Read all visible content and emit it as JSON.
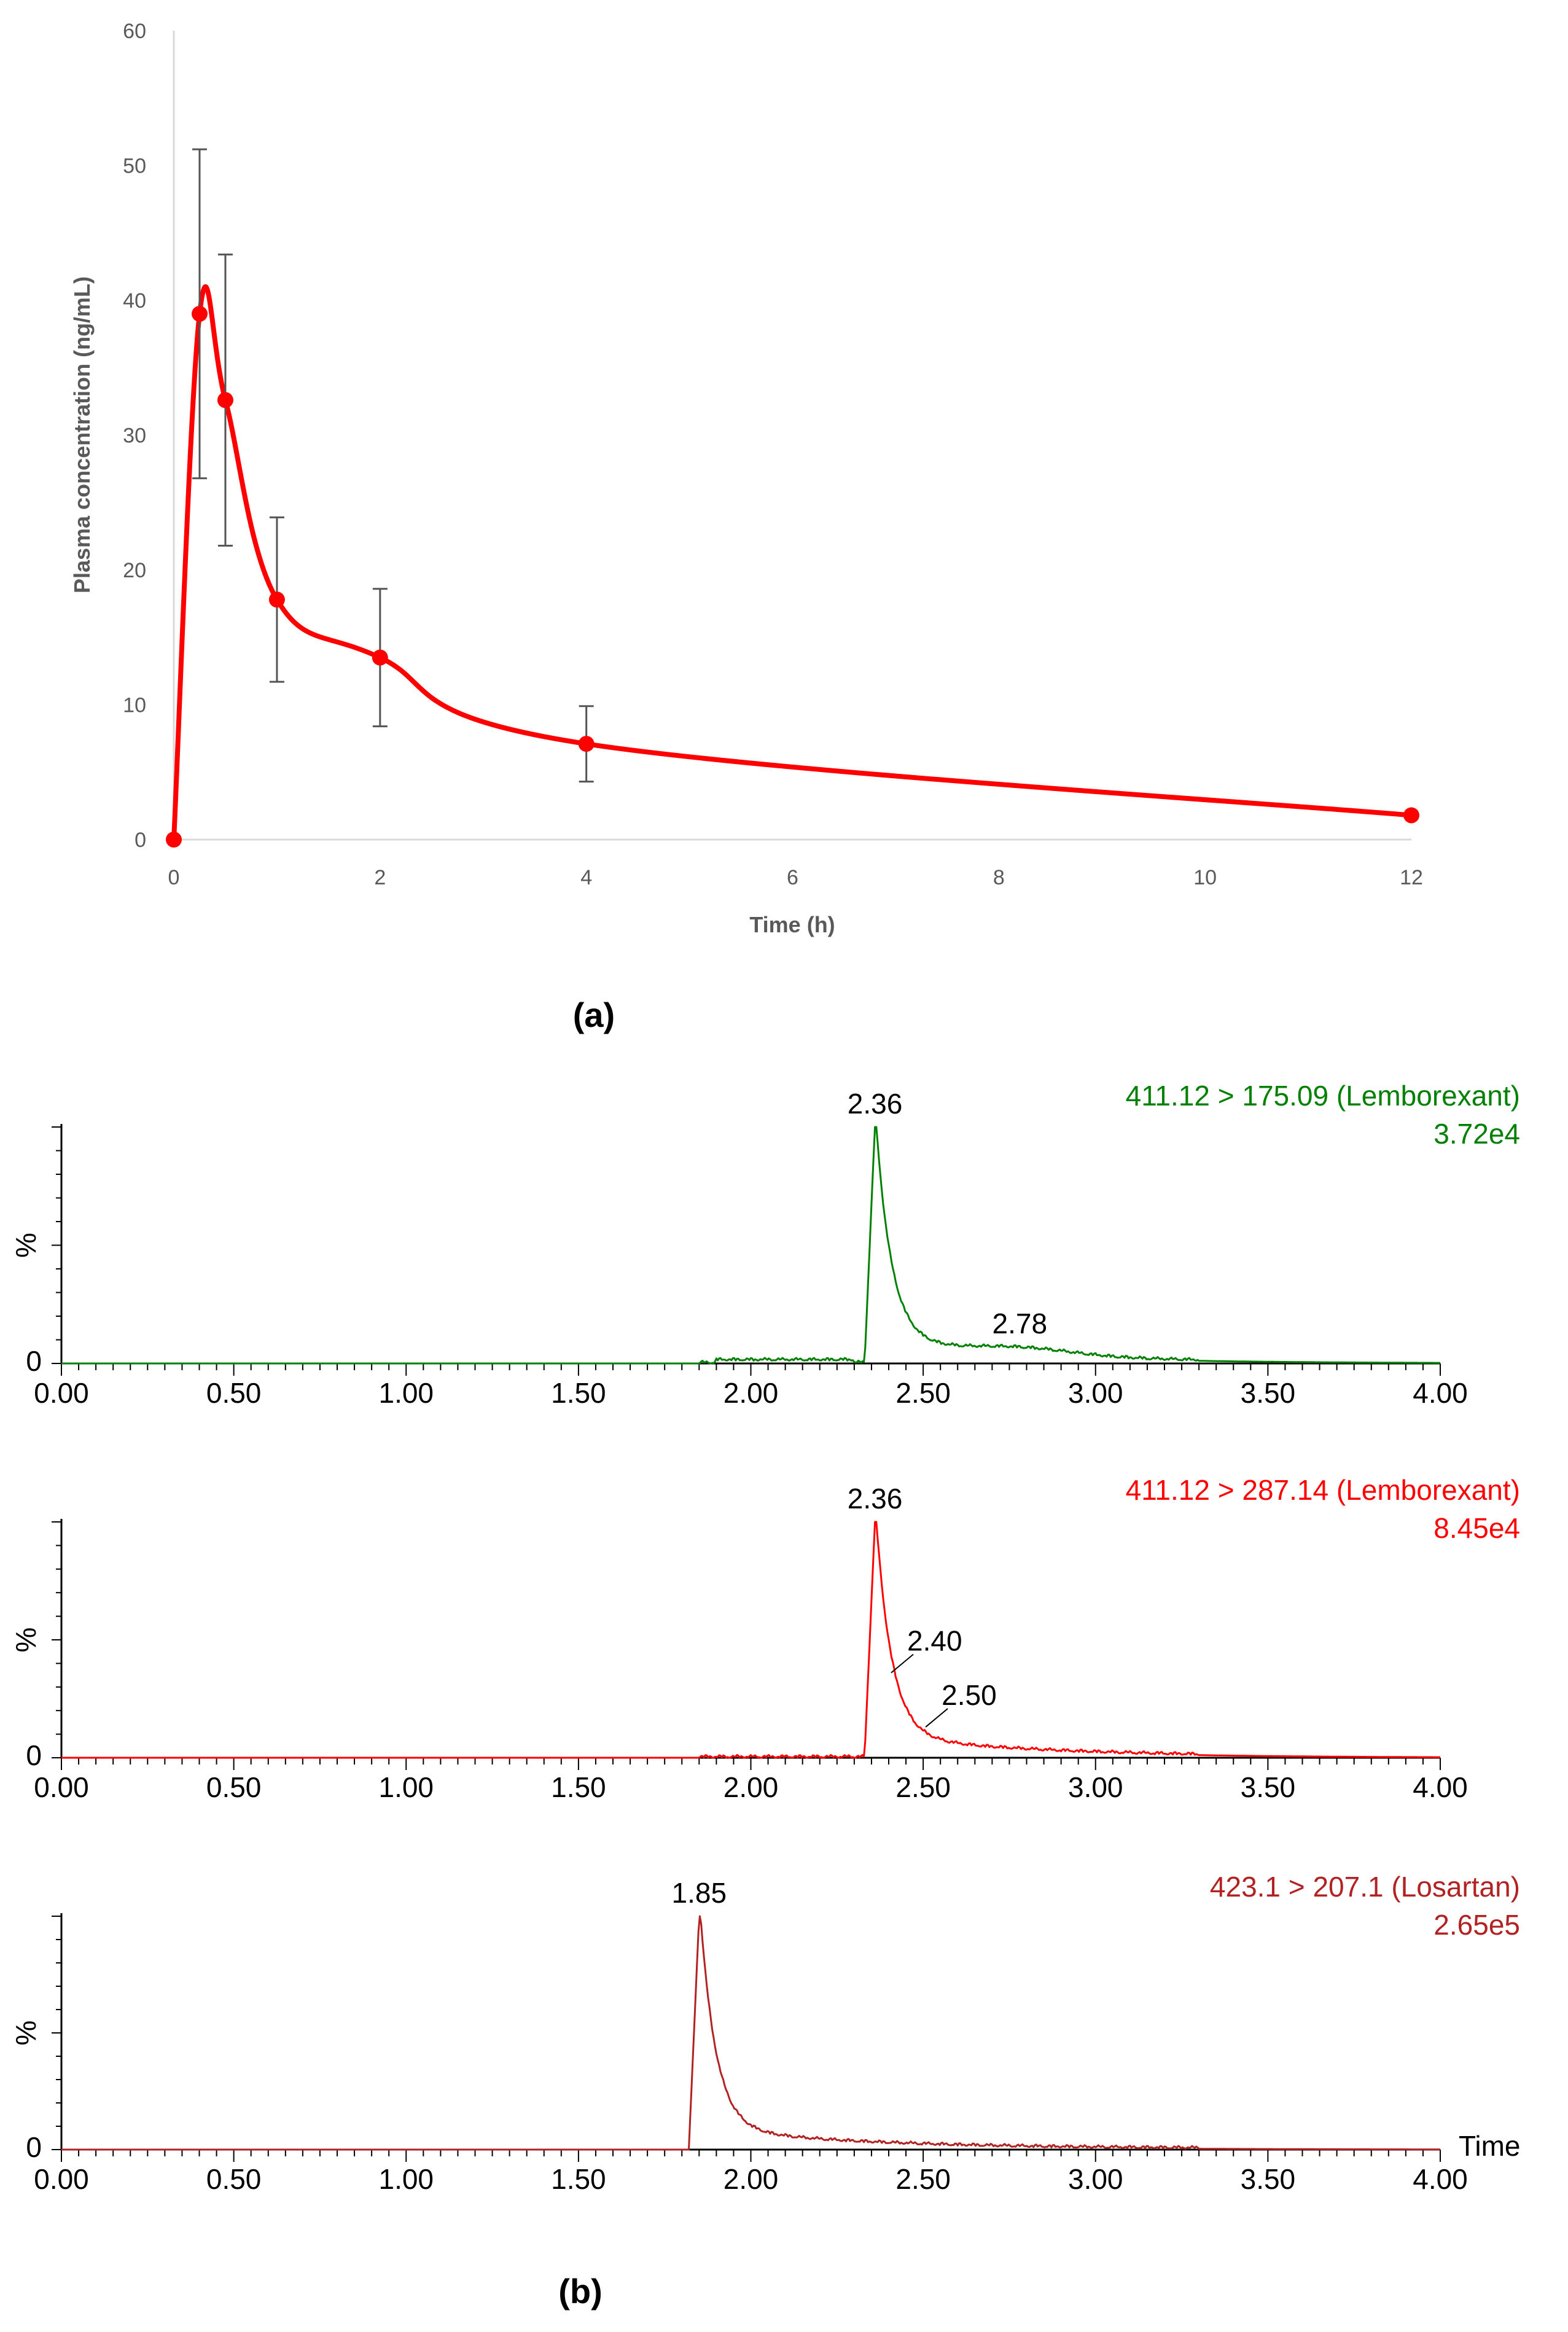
{
  "panels": {
    "a_label": "(a)",
    "b_label": "(b)"
  },
  "colors": {
    "pk_line": "#FF0000",
    "error_bar": "#555555",
    "axis": "#D9D9D9",
    "tick_text": "#595959",
    "chrom_axis": "#000000",
    "chrom1": "#008000",
    "chrom2": "#FF0000",
    "chrom3": "#B22222"
  },
  "chart_data": [
    {
      "type": "line",
      "panel": "(a)",
      "title": "",
      "xlabel": "Time (h)",
      "ylabel": "Plasma concentration (ng/mL)",
      "xlim": [
        0,
        12
      ],
      "ylim": [
        0,
        60
      ],
      "xticks": [
        0,
        2,
        4,
        6,
        8,
        10,
        12
      ],
      "yticks": [
        0,
        10,
        20,
        30,
        40,
        50,
        60
      ],
      "grid": false,
      "legend": "none",
      "series": [
        {
          "name": "Plasma concentration",
          "x": [
            0,
            0.25,
            0.5,
            1,
            2,
            4,
            12
          ],
          "y": [
            0,
            39.0,
            32.6,
            17.8,
            13.5,
            7.1,
            1.8
          ],
          "error": [
            null,
            12.2,
            10.8,
            6.1,
            5.1,
            2.8,
            null
          ]
        }
      ]
    },
    {
      "type": "line",
      "panel": "(b)",
      "trace_label": "411.12 > 175.09 (Lemborexant)",
      "intensity": "3.72e4",
      "ylabel": "%",
      "y_zero_label": "0",
      "xlabel": "",
      "xlim": [
        0,
        4
      ],
      "ylim": [
        0,
        100
      ],
      "xticks": [
        "0.00",
        "0.50",
        "1.00",
        "1.50",
        "2.00",
        "2.50",
        "3.00",
        "3.50",
        "4.00"
      ],
      "peaks": [
        {
          "rt": 2.36,
          "height": 100,
          "label": "2.36"
        },
        {
          "rt": 2.78,
          "height": 7,
          "label": "2.78"
        }
      ]
    },
    {
      "type": "line",
      "panel": "(b)",
      "trace_label": "411.12 > 287.14 (Lemborexant)",
      "intensity": "8.45e4",
      "ylabel": "%",
      "y_zero_label": "0",
      "xlabel": "",
      "xlim": [
        0,
        4
      ],
      "ylim": [
        0,
        100
      ],
      "xticks": [
        "0.00",
        "0.50",
        "1.00",
        "1.50",
        "2.00",
        "2.50",
        "3.00",
        "3.50",
        "4.00"
      ],
      "peaks": [
        {
          "rt": 2.36,
          "height": 100,
          "label": "2.36"
        },
        {
          "rt": 2.4,
          "height": 35,
          "label": "2.40"
        },
        {
          "rt": 2.5,
          "height": 12,
          "label": "2.50"
        }
      ]
    },
    {
      "type": "line",
      "panel": "(b)",
      "trace_label": "423.1 > 207.1 (Losartan)",
      "intensity": "2.65e5",
      "ylabel": "%",
      "y_zero_label": "0",
      "xlabel": "Time",
      "xlim": [
        0,
        4
      ],
      "ylim": [
        0,
        100
      ],
      "xticks": [
        "0.00",
        "0.50",
        "1.00",
        "1.50",
        "2.00",
        "2.50",
        "3.00",
        "3.50",
        "4.00"
      ],
      "peaks": [
        {
          "rt": 1.85,
          "height": 100,
          "label": "1.85"
        }
      ]
    }
  ]
}
